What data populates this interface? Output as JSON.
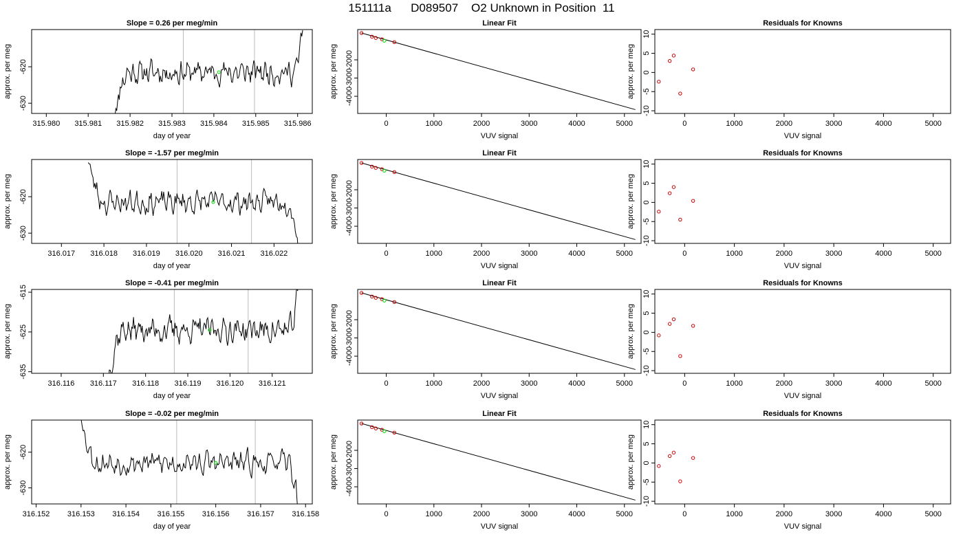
{
  "figure_title": "151111a      D089507    O2 Unknown in Position  11",
  "colors": {
    "line": "#000000",
    "marker": "#cc0000",
    "highlight": "#00dd00",
    "vline": "#bbbbbb"
  },
  "chart_data": [
    {
      "type": "line",
      "row": 0,
      "title": "Slope =  0.26  per meg/min",
      "xlabel": "day of year",
      "ylabel": "approx. per meg",
      "xlim": [
        315.97965,
        315.98635
      ],
      "ylim": [
        -632.8,
        -609.8
      ],
      "xticks": [
        315.98,
        315.981,
        315.982,
        315.983,
        315.984,
        315.985,
        315.986
      ],
      "xtick_labels": [
        "315.980",
        "315.981",
        "315.982",
        "315.983",
        "315.984",
        "315.985",
        "315.986"
      ],
      "yticks": [
        -620,
        -630
      ],
      "ytick_labels": [
        "-620",
        "-630"
      ],
      "vlines": [
        315.98327,
        315.98497
      ],
      "highlight": {
        "x": 315.98412,
        "y": -621.5
      },
      "start": 315.98162,
      "end": 315.98612,
      "start_y": -634,
      "end_y": -609.5,
      "seed": 11
    },
    {
      "type": "scatter",
      "row": 0,
      "title": "Linear Fit",
      "xlabel": "VUV signal",
      "ylabel": "approx. per meg",
      "xlim": [
        -600,
        5350
      ],
      "ylim": [
        -4940,
        -340
      ],
      "xticks": [
        0,
        1000,
        2000,
        3000,
        4000,
        5000
      ],
      "xtick_labels": [
        "0",
        "1000",
        "2000",
        "3000",
        "4000",
        "5000"
      ],
      "yticks": [
        -2000,
        -3000,
        -4000
      ],
      "ytick_labels": [
        "-2000",
        "-3000",
        "-4000"
      ],
      "fit_line": {
        "x": [
          -520,
          5230
        ],
        "y": [
          -530,
          -4730
        ]
      },
      "points": {
        "x": [
          -520,
          -300,
          -220,
          -90,
          170
        ],
        "y": [
          -530,
          -730,
          -800,
          -870,
          -1030
        ]
      },
      "highlight": {
        "x": -40,
        "y": -950
      }
    },
    {
      "type": "scatter",
      "row": 0,
      "title": "Residuals for Knowns",
      "xlabel": "VUV signal",
      "ylabel": "approx. per meg",
      "xlim": [
        -600,
        5350
      ],
      "ylim": [
        -10.7,
        11.2
      ],
      "xticks": [
        0,
        1000,
        2000,
        3000,
        4000,
        5000
      ],
      "xtick_labels": [
        "0",
        "1000",
        "2000",
        "3000",
        "4000",
        "5000"
      ],
      "yticks": [
        10,
        5,
        0,
        -5,
        -10
      ],
      "ytick_labels": [
        "10",
        "5",
        "0",
        "-5",
        "-10"
      ],
      "points": {
        "x": [
          -520,
          -300,
          -220,
          -90,
          170
        ],
        "y": [
          -2.4,
          3,
          4.4,
          -5.5,
          0.8
        ]
      }
    },
    {
      "type": "line",
      "row": 1,
      "title": "Slope =  -1.57  per meg/min",
      "xlabel": "day of year",
      "ylabel": "approx. per meg",
      "xlim": [
        316.0163,
        316.0229
      ],
      "ylim": [
        -632.8,
        -609.8
      ],
      "xticks": [
        316.017,
        316.018,
        316.019,
        316.02,
        316.021,
        316.022
      ],
      "xtick_labels": [
        "316.017",
        "316.018",
        "316.019",
        "316.020",
        "316.021",
        "316.022"
      ],
      "yticks": [
        -620,
        -630
      ],
      "ytick_labels": [
        "-620",
        "-630"
      ],
      "vlines": [
        316.01972,
        316.02147
      ],
      "highlight": {
        "x": 316.02057,
        "y": -621.5
      },
      "start": 316.01763,
      "end": 316.02257,
      "start_y": -609.5,
      "end_y": -634,
      "seed": 23
    },
    {
      "type": "scatter",
      "row": 1,
      "title": "Linear Fit",
      "xlabel": "VUV signal",
      "ylabel": "approx. per meg",
      "xlim": [
        -600,
        5350
      ],
      "ylim": [
        -4940,
        -340
      ],
      "xticks": [
        0,
        1000,
        2000,
        3000,
        4000,
        5000
      ],
      "xtick_labels": [
        "0",
        "1000",
        "2000",
        "3000",
        "4000",
        "5000"
      ],
      "yticks": [
        -2000,
        -3000,
        -4000
      ],
      "ytick_labels": [
        "-2000",
        "-3000",
        "-4000"
      ],
      "fit_line": {
        "x": [
          -520,
          5230
        ],
        "y": [
          -530,
          -4730
        ]
      },
      "points": {
        "x": [
          -520,
          -300,
          -220,
          -90,
          170
        ],
        "y": [
          -530,
          -730,
          -800,
          -870,
          -1030
        ]
      },
      "highlight": {
        "x": -40,
        "y": -950
      }
    },
    {
      "type": "scatter",
      "row": 1,
      "title": "Residuals for Knowns",
      "xlabel": "VUV signal",
      "ylabel": "approx. per meg",
      "xlim": [
        -600,
        5350
      ],
      "ylim": [
        -10.7,
        11.2
      ],
      "xticks": [
        0,
        1000,
        2000,
        3000,
        4000,
        5000
      ],
      "xtick_labels": [
        "0",
        "1000",
        "2000",
        "3000",
        "4000",
        "5000"
      ],
      "yticks": [
        10,
        5,
        0,
        -5,
        -10
      ],
      "ytick_labels": [
        "10",
        "5",
        "0",
        "-5",
        "-10"
      ],
      "points": {
        "x": [
          -520,
          -300,
          -220,
          -90,
          170
        ],
        "y": [
          -2.4,
          2.4,
          4,
          -4.5,
          0.4
        ]
      }
    },
    {
      "type": "line",
      "row": 2,
      "title": "Slope =  -0.41  per meg/min",
      "xlabel": "day of year",
      "ylabel": "approx. per meg",
      "xlim": [
        316.1153,
        316.12195
      ],
      "ylim": [
        -635.4,
        -614.3
      ],
      "xticks": [
        316.116,
        316.117,
        316.118,
        316.119,
        316.12,
        316.121
      ],
      "xtick_labels": [
        "316.116",
        "316.117",
        "316.118",
        "316.119",
        "316.120",
        "316.121"
      ],
      "yticks": [
        -615,
        -625,
        -635
      ],
      "ytick_labels": [
        "-615",
        "-625",
        "-635"
      ],
      "vlines": [
        316.11868,
        316.12043
      ],
      "highlight": {
        "x": 316.11952,
        "y": -624.5
      },
      "start": 316.11712,
      "end": 316.12162,
      "start_y": -637,
      "end_y": -614,
      "seed": 37
    },
    {
      "type": "scatter",
      "row": 2,
      "title": "Linear Fit",
      "xlabel": "VUV signal",
      "ylabel": "approx. per meg",
      "xlim": [
        -600,
        5350
      ],
      "ylim": [
        -4940,
        -340
      ],
      "xticks": [
        0,
        1000,
        2000,
        3000,
        4000,
        5000
      ],
      "xtick_labels": [
        "0",
        "1000",
        "2000",
        "3000",
        "4000",
        "5000"
      ],
      "yticks": [
        -2000,
        -3000,
        -4000
      ],
      "ytick_labels": [
        "-2000",
        "-3000",
        "-4000"
      ],
      "fit_line": {
        "x": [
          -520,
          5230
        ],
        "y": [
          -530,
          -4730
        ]
      },
      "points": {
        "x": [
          -520,
          -300,
          -220,
          -90,
          170
        ],
        "y": [
          -530,
          -730,
          -800,
          -870,
          -1030
        ]
      },
      "highlight": {
        "x": -40,
        "y": -950
      }
    },
    {
      "type": "scatter",
      "row": 2,
      "title": "Residuals for Knowns",
      "xlabel": "VUV signal",
      "ylabel": "approx. per meg",
      "xlim": [
        -600,
        5350
      ],
      "ylim": [
        -10.7,
        11.2
      ],
      "xticks": [
        0,
        1000,
        2000,
        3000,
        4000,
        5000
      ],
      "xtick_labels": [
        "0",
        "1000",
        "2000",
        "3000",
        "4000",
        "5000"
      ],
      "yticks": [
        10,
        5,
        0,
        -5,
        -10
      ],
      "ytick_labels": [
        "10",
        "5",
        "0",
        "-5",
        "-10"
      ],
      "points": {
        "x": [
          -520,
          -300,
          -220,
          -90,
          170
        ],
        "y": [
          -0.8,
          2.2,
          3.4,
          -6.2,
          1.7
        ]
      }
    },
    {
      "type": "line",
      "row": 3,
      "title": "Slope =  -0.02  per meg/min",
      "xlabel": "day of year",
      "ylabel": "approx. per meg",
      "xlim": [
        316.1519,
        316.15815
      ],
      "ylim": [
        -634.5,
        -611
      ],
      "xticks": [
        316.152,
        316.153,
        316.154,
        316.155,
        316.156,
        316.157,
        316.158
      ],
      "xtick_labels": [
        "316.152",
        "316.153",
        "316.154",
        "316.155",
        "316.156",
        "316.157",
        "316.158"
      ],
      "yticks": [
        -620,
        -630
      ],
      "ytick_labels": [
        "-620",
        "-630"
      ],
      "vlines": [
        316.15513,
        316.15688
      ],
      "highlight": {
        "x": 316.156,
        "y": -623
      },
      "start": 316.153,
      "end": 316.15783,
      "start_y": -609.5,
      "end_y": -635,
      "seed": 53
    },
    {
      "type": "scatter",
      "row": 3,
      "title": "Linear Fit",
      "xlabel": "VUV signal",
      "ylabel": "approx. per meg",
      "xlim": [
        -600,
        5350
      ],
      "ylim": [
        -4940,
        -340
      ],
      "xticks": [
        0,
        1000,
        2000,
        3000,
        4000,
        5000
      ],
      "xtick_labels": [
        "0",
        "1000",
        "2000",
        "3000",
        "4000",
        "5000"
      ],
      "yticks": [
        -2000,
        -3000,
        -4000
      ],
      "ytick_labels": [
        "-2000",
        "-3000",
        "-4000"
      ],
      "fit_line": {
        "x": [
          -520,
          5230
        ],
        "y": [
          -530,
          -4730
        ]
      },
      "points": {
        "x": [
          -520,
          -300,
          -220,
          -90,
          170
        ],
        "y": [
          -530,
          -730,
          -800,
          -870,
          -1030
        ]
      },
      "highlight": {
        "x": -40,
        "y": -950
      }
    },
    {
      "type": "scatter",
      "row": 3,
      "title": "Residuals for Knowns",
      "xlabel": "VUV signal",
      "ylabel": "approx. per meg",
      "xlim": [
        -600,
        5350
      ],
      "ylim": [
        -10.7,
        11.2
      ],
      "xticks": [
        0,
        1000,
        2000,
        3000,
        4000,
        5000
      ],
      "xtick_labels": [
        "0",
        "1000",
        "2000",
        "3000",
        "4000",
        "5000"
      ],
      "yticks": [
        10,
        5,
        0,
        -5,
        -10
      ],
      "ytick_labels": [
        "10",
        "5",
        "0",
        "-5",
        "-10"
      ],
      "points": {
        "x": [
          -520,
          -300,
          -220,
          -90,
          170
        ],
        "y": [
          -0.8,
          1.8,
          2.7,
          -4.8,
          1.3
        ]
      }
    }
  ]
}
